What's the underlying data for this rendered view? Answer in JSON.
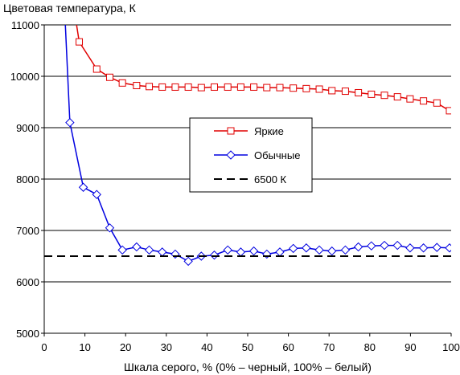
{
  "chart_data": {
    "type": "line",
    "title": "",
    "xlabel": "Шкала серого, % (0% – черный, 100% – белый)",
    "ylabel": "Цветовая температура, К",
    "xlim": [
      0,
      100
    ],
    "ylim": [
      5000,
      11000
    ],
    "x_ticks": [
      "0",
      "10",
      "20",
      "30",
      "40",
      "50",
      "60",
      "70",
      "80",
      "90",
      "100"
    ],
    "y_ticks": [
      "5000",
      "6000",
      "7000",
      "8000",
      "9000",
      "10000",
      "11000"
    ],
    "grid": "horizontal",
    "legend_position": "center-right",
    "series": [
      {
        "name": "Яркие",
        "color": "#e00000",
        "marker": "square",
        "x": [
          5,
          8.6,
          12.9,
          16.1,
          19.2,
          22.7,
          25.8,
          29.0,
          32.2,
          35.4,
          38.6,
          41.8,
          45.1,
          48.3,
          51.5,
          54.7,
          57.9,
          61.2,
          64.4,
          67.6,
          70.7,
          74.0,
          77.2,
          80.4,
          83.6,
          86.8,
          89.9,
          93.2,
          96.5,
          99.6
        ],
        "y": [
          12500,
          10670,
          10140,
          9980,
          9870,
          9820,
          9800,
          9790,
          9790,
          9790,
          9780,
          9790,
          9790,
          9790,
          9790,
          9780,
          9780,
          9770,
          9760,
          9750,
          9720,
          9710,
          9680,
          9650,
          9630,
          9600,
          9560,
          9520,
          9480,
          9330
        ]
      },
      {
        "name": "Обычные",
        "color": "#0000e0",
        "marker": "diamond",
        "x": [
          4.3,
          6.3,
          9.6,
          12.9,
          16.1,
          19.2,
          22.7,
          25.8,
          29.0,
          32.2,
          35.4,
          38.6,
          41.8,
          45.1,
          48.3,
          51.5,
          54.7,
          57.9,
          61.2,
          64.4,
          67.6,
          70.7,
          74.0,
          77.2,
          80.4,
          83.6,
          86.8,
          89.9,
          93.2,
          96.5,
          99.6
        ],
        "y": [
          12500,
          9100,
          7840,
          7700,
          7050,
          6620,
          6680,
          6620,
          6580,
          6540,
          6400,
          6500,
          6520,
          6620,
          6580,
          6600,
          6540,
          6580,
          6650,
          6660,
          6620,
          6600,
          6620,
          6680,
          6700,
          6710,
          6710,
          6660,
          6660,
          6670,
          6660
        ]
      },
      {
        "name": "6500 К",
        "color": "#000000",
        "marker": "none",
        "dash": true,
        "x": [
          0,
          100
        ],
        "y": [
          6500,
          6500
        ]
      }
    ]
  }
}
